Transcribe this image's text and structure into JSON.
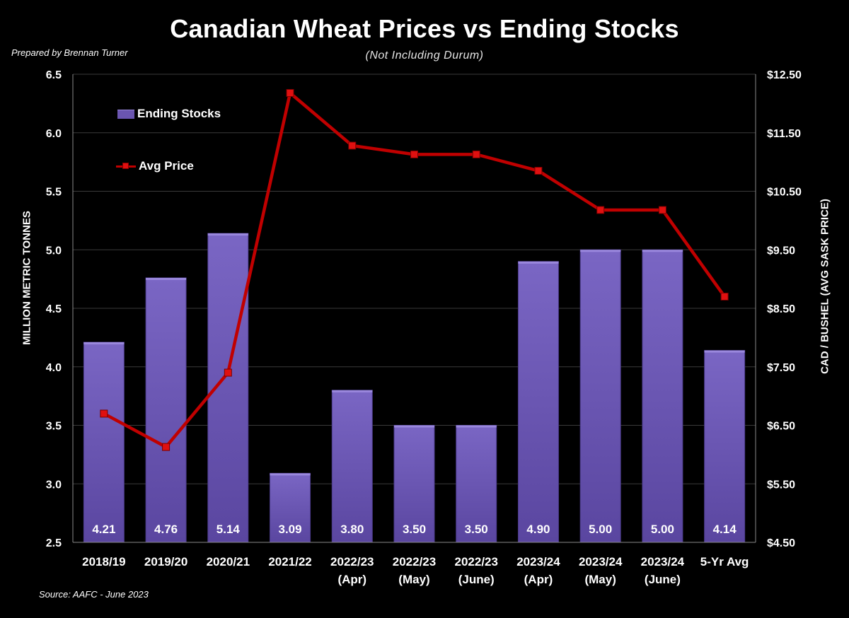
{
  "chart_data": {
    "type": "bar",
    "title": "Canadian Wheat Prices vs Ending Stocks",
    "subtitle": "(Not Including Durum)",
    "prepared_by": "Prepared by Brennan Turner",
    "source": "Source: AAFC - June 2023",
    "categories": [
      [
        "2018/19"
      ],
      [
        "2019/20"
      ],
      [
        "2020/21"
      ],
      [
        "2021/22"
      ],
      [
        "2022/23",
        "(Apr)"
      ],
      [
        "2022/23",
        "(May)"
      ],
      [
        "2022/23",
        "(June)"
      ],
      [
        "2023/24",
        "(Apr)"
      ],
      [
        "2023/24",
        "(May)"
      ],
      [
        "2023/24",
        "(June)"
      ],
      [
        "5-Yr Avg"
      ]
    ],
    "series": [
      {
        "name": "Ending Stocks",
        "type": "bar",
        "axis": "left",
        "values": [
          4.21,
          4.76,
          5.14,
          3.09,
          3.8,
          3.5,
          3.5,
          4.9,
          5.0,
          5.0,
          4.14
        ],
        "data_labels": [
          "4.21",
          "4.76",
          "5.14",
          "3.09",
          "3.80",
          "3.50",
          "3.50",
          "4.90",
          "5.00",
          "5.00",
          "4.14"
        ]
      },
      {
        "name": "Avg Price",
        "type": "line",
        "axis": "right",
        "values": [
          6.7,
          6.13,
          7.4,
          12.18,
          11.28,
          11.13,
          11.13,
          10.85,
          10.18,
          10.18,
          8.7
        ]
      }
    ],
    "ylabel": "MILLION METRIC TONNES",
    "ylabel_right": "CAD / BUSHEL (AVG SASK PRICE)",
    "ylim": [
      2.5,
      6.5
    ],
    "ylim_right": [
      4.5,
      12.5
    ],
    "yticks": [
      "2.5",
      "3.0",
      "3.5",
      "4.0",
      "4.5",
      "5.0",
      "5.5",
      "6.0",
      "6.5"
    ],
    "yticks_right": [
      "$4.50",
      "$5.50",
      "$6.50",
      "$7.50",
      "$8.50",
      "$9.50",
      "$10.50",
      "$11.50",
      "$12.50"
    ],
    "grid": true,
    "legend_position": "top-left",
    "colors": {
      "background": "#000000",
      "bar": "#6a55b0",
      "bar_highlight": "#9a88dd",
      "line": "#c00000",
      "marker": "#e01010",
      "grid": "#3a3a3a",
      "text": "#ffffff"
    }
  }
}
